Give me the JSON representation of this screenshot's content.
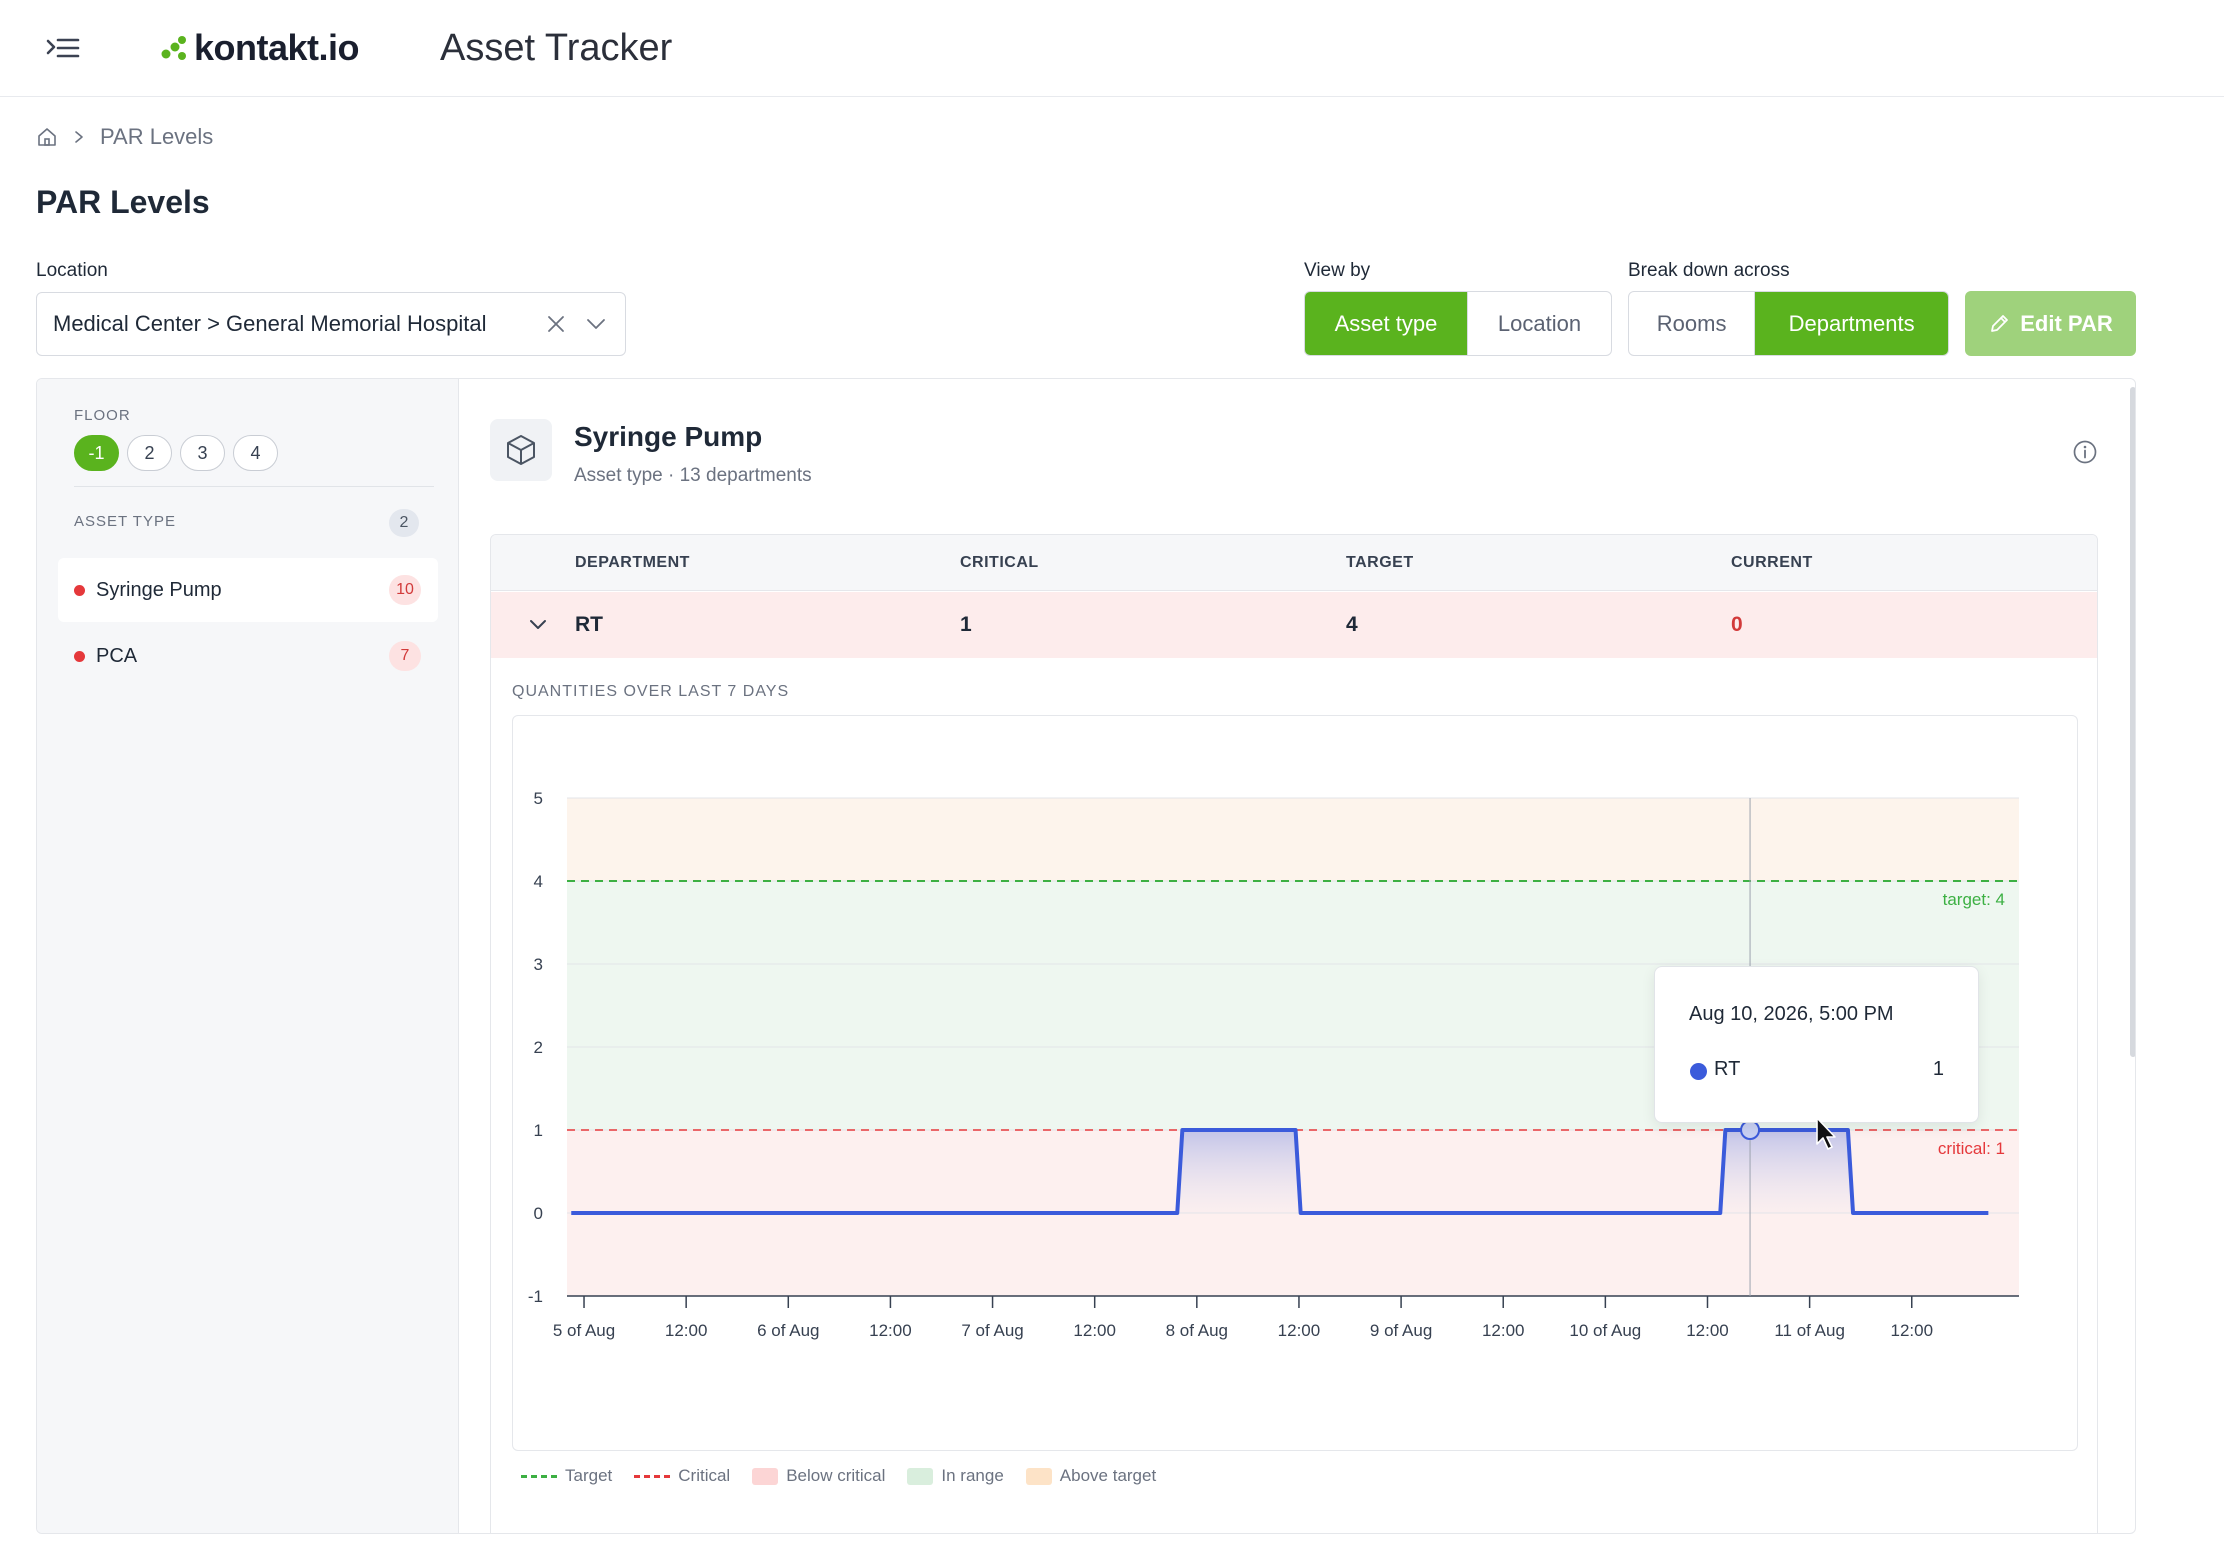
{
  "header": {
    "logo_text": "kontakt.io",
    "app_title": "Asset Tracker"
  },
  "breadcrumb": {
    "current": "PAR Levels"
  },
  "page_title": "PAR Levels",
  "filters": {
    "location_label": "Location",
    "location_value": "Medical Center > General Memorial Hospital",
    "view_by_label": "View by",
    "view_by_options": [
      "Asset type",
      "Location"
    ],
    "view_by_selected": "Asset type",
    "break_down_label": "Break down across",
    "break_down_options": [
      "Rooms",
      "Departments"
    ],
    "break_down_selected": "Departments",
    "edit_label": "Edit PAR"
  },
  "sidebar": {
    "floor_label": "FLOOR",
    "floors": [
      "-1",
      "2",
      "3",
      "4"
    ],
    "floor_selected": "-1",
    "asset_type_label": "ASSET TYPE",
    "asset_type_count": "2",
    "asset_types": [
      {
        "name": "Syringe Pump",
        "count": "10"
      },
      {
        "name": "PCA",
        "count": "7"
      }
    ]
  },
  "detail": {
    "title": "Syringe Pump",
    "subtitle": "Asset type · 13 departments",
    "columns": [
      "DEPARTMENT",
      "CRITICAL",
      "TARGET",
      "CURRENT"
    ],
    "row": {
      "department": "RT",
      "critical": "1",
      "target": "4",
      "current": "0"
    },
    "quantities_label": "QUANTITIES OVER LAST 7 DAYS"
  },
  "chart_data": {
    "type": "line",
    "step": true,
    "ylim": [
      -1,
      5
    ],
    "yticks": [
      -1,
      0,
      1,
      2,
      3,
      4,
      5
    ],
    "x_tick_labels": [
      "5 of Aug",
      "12:00",
      "6 of Aug",
      "12:00",
      "7 of Aug",
      "12:00",
      "8 of Aug",
      "12:00",
      "9 of Aug",
      "12:00",
      "10 of Aug",
      "12:00",
      "11 of Aug",
      "12:00"
    ],
    "x_range_hours": [
      -2,
      168.6
    ],
    "series": [
      {
        "name": "RT",
        "color": "#3b5bdb",
        "points_hours": [
          [
            -1.5,
            0
          ],
          [
            69.7,
            0
          ],
          [
            70.3,
            1
          ],
          [
            83.6,
            1
          ],
          [
            84.2,
            0
          ],
          [
            133.5,
            0
          ],
          [
            134.1,
            1
          ],
          [
            148.5,
            1
          ],
          [
            149.1,
            0
          ],
          [
            165,
            0
          ]
        ]
      }
    ],
    "target": 4,
    "critical": 1,
    "target_label": "target: 4",
    "critical_label": "critical: 1",
    "legend": [
      {
        "label": "Target",
        "kind": "dash",
        "color": "#3cb043"
      },
      {
        "label": "Critical",
        "kind": "dash",
        "color": "#e5383b"
      },
      {
        "label": "Below critical",
        "kind": "box",
        "color": "#fcd5d5"
      },
      {
        "label": "In range",
        "kind": "box",
        "color": "#d9eedd"
      },
      {
        "label": "Above target",
        "kind": "box",
        "color": "#fde3c7"
      }
    ]
  },
  "tooltip": {
    "date": "Aug 10, 2026, 5:00 PM",
    "series_name": "RT",
    "value": "1"
  }
}
